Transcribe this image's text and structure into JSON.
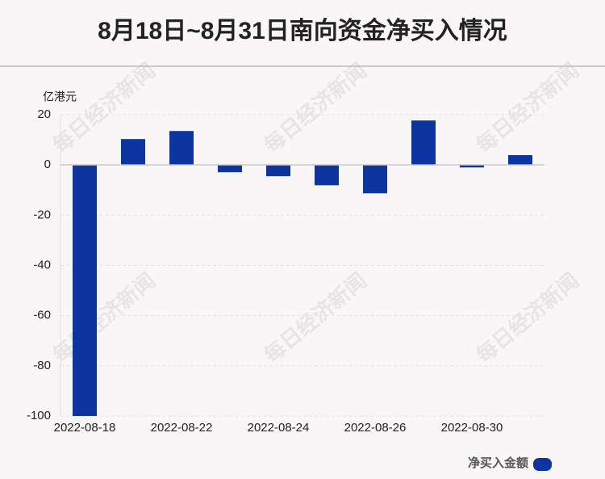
{
  "chart_data": {
    "type": "bar",
    "title": "8月18日~8月31日南向资金净买入情况",
    "y_unit": "亿港元",
    "watermark": "每日经济新闻",
    "categories": [
      "2022-08-18",
      null,
      "2022-08-22",
      null,
      "2022-08-24",
      null,
      "2022-08-26",
      null,
      "2022-08-30",
      null
    ],
    "series": [
      {
        "name": "净买入金额",
        "color": "#0d35a0",
        "values": [
          -100,
          10.3,
          13.5,
          -2.9,
          -4.5,
          -8.1,
          -11.3,
          17.7,
          -1.0,
          3.9
        ]
      }
    ],
    "ylim": [
      -100,
      20
    ],
    "yticks": [
      20,
      0,
      -20,
      -40,
      -60,
      -80,
      -100
    ],
    "grid": true
  }
}
